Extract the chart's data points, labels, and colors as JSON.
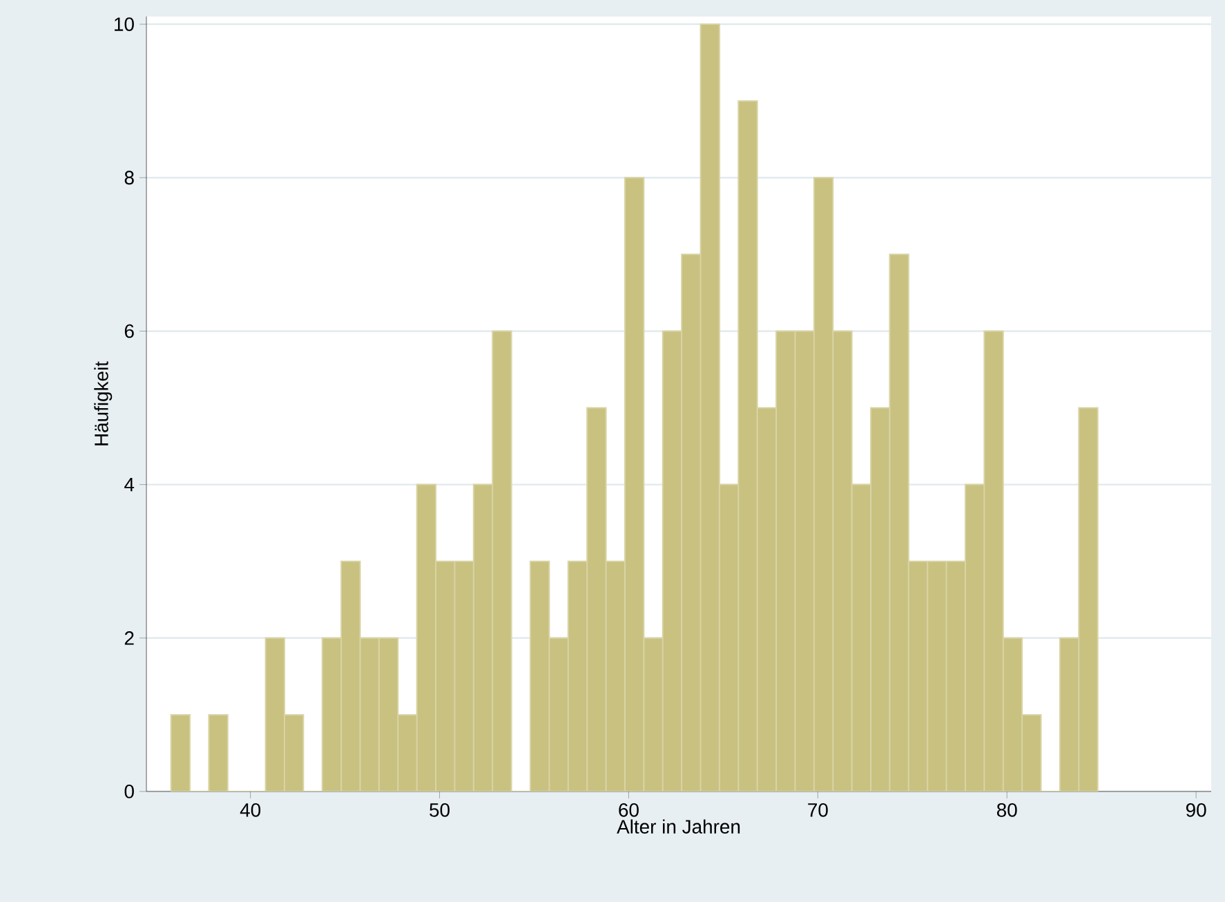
{
  "chart_data": {
    "type": "histogram",
    "xlabel": "Alter in Jahren",
    "ylabel": "Häufigkeit",
    "bins": [
      35.8,
      36.8,
      37.8,
      38.8,
      39.8,
      40.8,
      41.8,
      42.8,
      43.8,
      44.8,
      45.8,
      46.8,
      47.8,
      48.8,
      49.8,
      50.8,
      51.8,
      52.8,
      53.8,
      54.8,
      55.8,
      56.8,
      57.8,
      58.8,
      59.8,
      60.8,
      61.8,
      62.8,
      63.8,
      64.8,
      65.8,
      66.8,
      67.8,
      68.8,
      69.8,
      70.8,
      71.8,
      72.8,
      73.8,
      74.8,
      75.8,
      76.8,
      77.8,
      78.8,
      79.8,
      80.8,
      81.8,
      82.8,
      83.8,
      84.8
    ],
    "values": [
      1,
      0,
      1,
      0,
      0,
      2,
      1,
      0,
      2,
      3,
      2,
      2,
      1,
      4,
      3,
      3,
      4,
      6,
      0,
      3,
      2,
      3,
      5,
      3,
      8,
      2,
      6,
      7,
      10,
      4,
      9,
      5,
      6,
      6,
      8,
      6,
      4,
      5,
      7,
      3,
      3,
      3,
      4,
      6,
      2,
      1,
      0,
      2,
      5
    ],
    "color": "#c9c180",
    "xlim": [
      34.5,
      90.8
    ],
    "ylim": [
      0,
      10.1
    ],
    "xticks": [
      40,
      50,
      60,
      70,
      80,
      90
    ],
    "yticks": [
      0,
      2,
      4,
      6,
      8,
      10
    ],
    "grid": "y"
  }
}
